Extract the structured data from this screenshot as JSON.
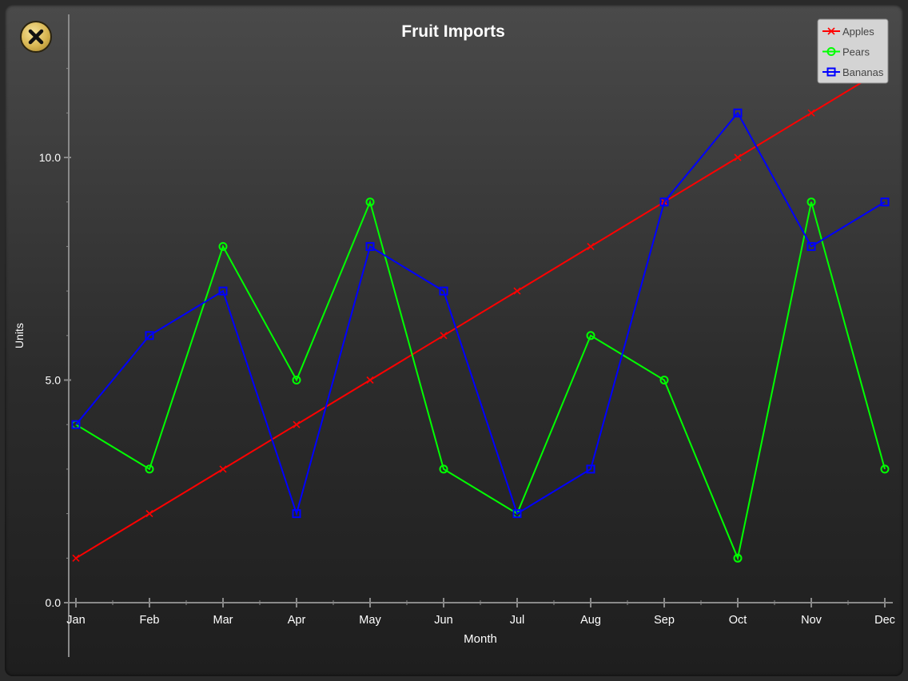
{
  "window": {
    "close_icon": "close-x-icon"
  },
  "chart_data": {
    "type": "line",
    "title": "Fruit Imports",
    "xlabel": "Month",
    "ylabel": "Units",
    "categories": [
      "Jan",
      "Feb",
      "Mar",
      "Apr",
      "May",
      "Jun",
      "Jul",
      "Aug",
      "Sep",
      "Oct",
      "Nov",
      "Dec"
    ],
    "yticks": [
      "0.0",
      "5.0",
      "10.0"
    ],
    "ylim": [
      -1.2,
      13.2
    ],
    "legend_position": "top-right",
    "series": [
      {
        "name": "Apples",
        "color": "#ff0000",
        "marker": "x",
        "values": [
          1,
          2,
          3,
          4,
          5,
          6,
          7,
          8,
          9,
          10,
          11,
          12
        ]
      },
      {
        "name": "Pears",
        "color": "#00ff00",
        "marker": "circle",
        "values": [
          4,
          3,
          8,
          5,
          9,
          3,
          2,
          6,
          5,
          1,
          9,
          3
        ]
      },
      {
        "name": "Bananas",
        "color": "#0000ff",
        "marker": "square",
        "values": [
          4,
          6,
          7,
          2,
          8,
          7,
          2,
          3,
          9,
          11,
          8,
          9
        ]
      }
    ]
  }
}
